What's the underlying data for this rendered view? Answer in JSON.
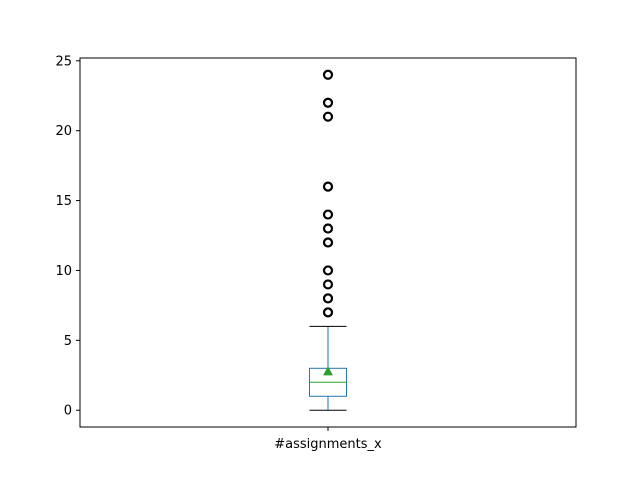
{
  "chart_data": {
    "type": "box",
    "title": "",
    "xlabel": "",
    "ylabel": "",
    "categories": [
      "#assignments_x"
    ],
    "ylim": [
      -1.2,
      25.2
    ],
    "yticks": [
      0,
      5,
      10,
      15,
      20,
      25
    ],
    "box": {
      "whisker_low": 0,
      "q1": 1,
      "median": 2,
      "q3": 3,
      "whisker_high": 6,
      "mean": 2.8,
      "outliers": [
        7,
        8,
        9,
        10,
        12,
        13,
        14,
        16,
        21,
        22,
        24
      ]
    },
    "colors": {
      "box": "#1f77b4",
      "median": "#2ca02c",
      "mean": "#2ca02c",
      "whisker_cap": "#000000",
      "outlier": "#000000"
    }
  }
}
